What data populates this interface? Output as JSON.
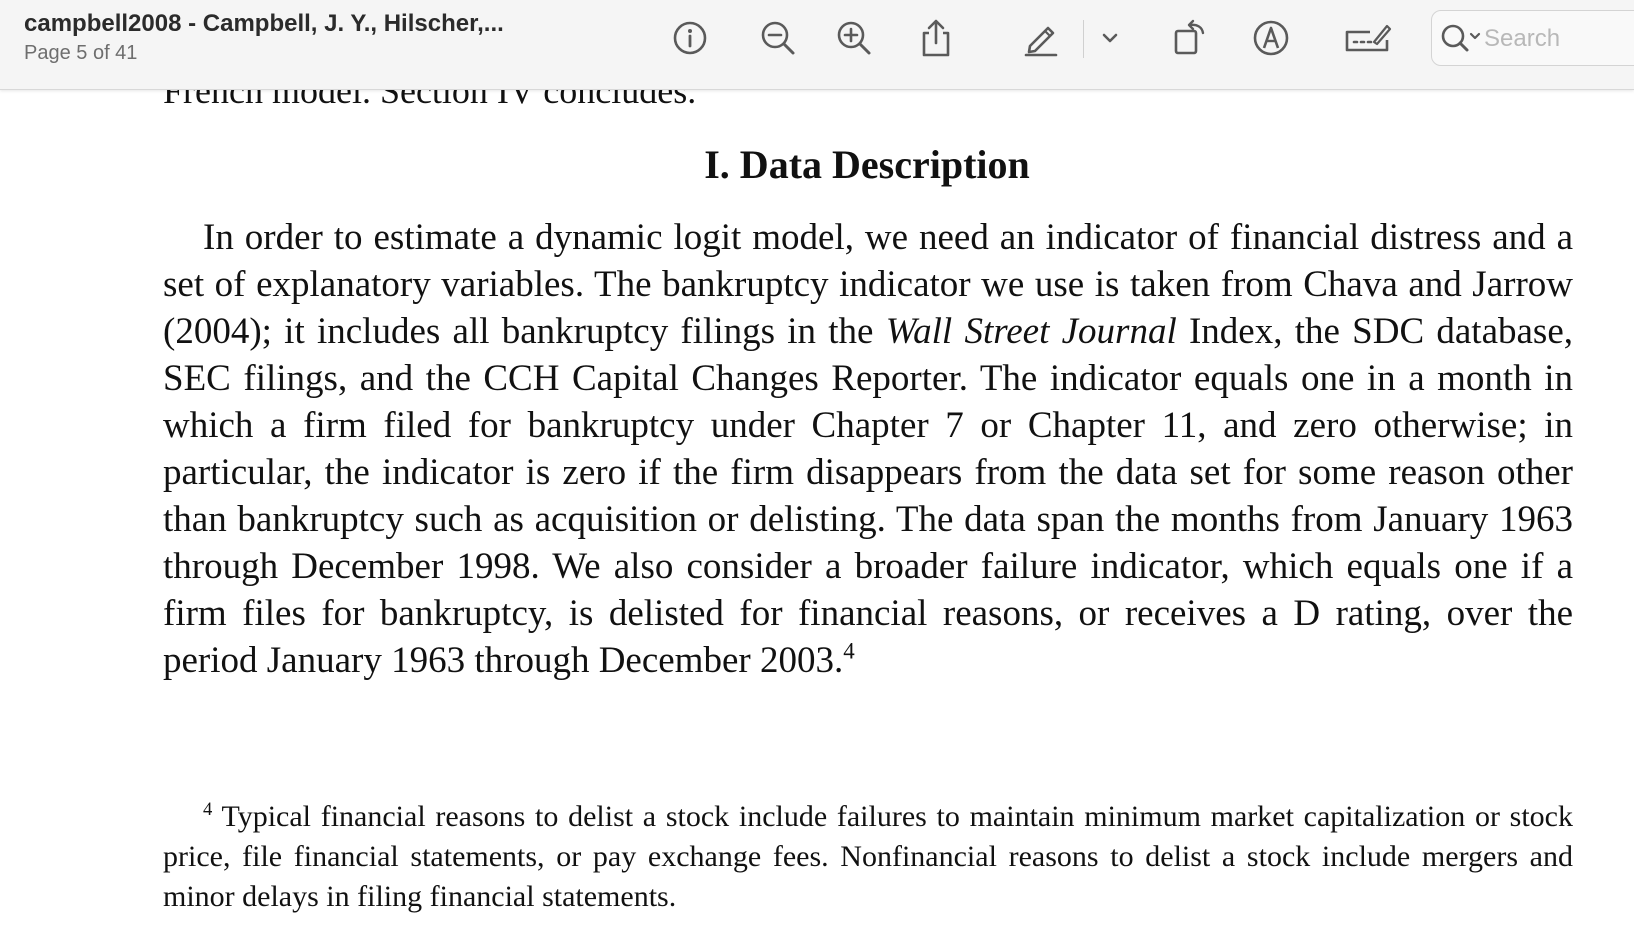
{
  "window": {
    "title": "campbell2008 - Campbell, J. Y., Hilscher,...",
    "page_indicator": "Page 5 of 41"
  },
  "toolbar": {
    "buttons": [
      {
        "name": "info",
        "icon": "info-icon"
      },
      {
        "name": "zoom-out",
        "icon": "zoom-out-icon"
      },
      {
        "name": "zoom-in",
        "icon": "zoom-in-icon"
      },
      {
        "name": "share",
        "icon": "share-icon"
      },
      {
        "name": "highlight",
        "icon": "highlight-pen-icon"
      },
      {
        "name": "highlight-menu",
        "icon": "chevron-down-icon"
      },
      {
        "name": "rotate",
        "icon": "rotate-icon"
      },
      {
        "name": "markup",
        "icon": "markup-icon"
      },
      {
        "name": "sign",
        "icon": "signature-icon"
      }
    ],
    "search": {
      "placeholder": "Search",
      "value": ""
    }
  },
  "document": {
    "cut_off_line": "French model. Section IV concludes.",
    "section_heading": "I.  Data Description",
    "paragraph": {
      "before_italic": "In order to estimate a dynamic logit model, we need an indicator of financial distress and a set of explanatory variables. The bankruptcy indicator we use is taken from Chava and Jarrow (2004); it includes all bankruptcy filings in the ",
      "italic": "Wall Street Journal",
      "after_italic": " Index, the SDC database, SEC filings, and the CCH Capital Changes Reporter. The indicator equals one in a month in which a firm filed for bankruptcy under Chapter 7 or Chapter 11, and zero otherwise; in particular, the indicator is zero if the firm disappears from the data set for some reason other than bankruptcy such as acquisition or delisting. The data span the months from January 1963 through December 1998. We also consider a broader failure indicator, which equals one if a firm files for bankruptcy, is delisted for financial reasons, or receives a D rating, over the period January 1963 through December 2003.",
      "footnote_ref": "4"
    },
    "footnote": {
      "marker": "4",
      "text": "Typical financial reasons to delist a stock include failures to maintain minimum market capitalization or stock price, file financial statements, or pay exchange fees. Nonfinancial reasons to delist a stock include mergers and minor delays in filing financial statements."
    }
  },
  "colors": {
    "toolbar_bg": "#f5f5f5",
    "icon": "#5a5a5a",
    "text": "#111111",
    "subtitle": "#6e6e6e",
    "search_placeholder": "#b8b8b8"
  }
}
